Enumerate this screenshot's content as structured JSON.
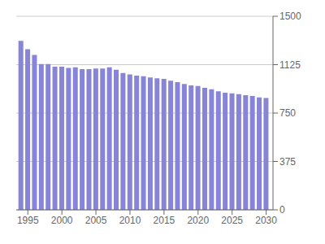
{
  "chart_data": {
    "type": "bar",
    "x": [
      1994,
      1995,
      1996,
      1997,
      1998,
      1999,
      2000,
      2001,
      2002,
      2003,
      2004,
      2005,
      2006,
      2007,
      2008,
      2009,
      2010,
      2011,
      2012,
      2013,
      2014,
      2015,
      2016,
      2017,
      2018,
      2019,
      2020,
      2021,
      2022,
      2023,
      2024,
      2025,
      2026,
      2027,
      2028,
      2029,
      2030
    ],
    "values": [
      1310,
      1245,
      1200,
      1130,
      1130,
      1110,
      1110,
      1100,
      1105,
      1090,
      1090,
      1095,
      1095,
      1105,
      1085,
      1060,
      1050,
      1040,
      1035,
      1025,
      1020,
      1015,
      1000,
      990,
      975,
      965,
      960,
      945,
      935,
      918,
      908,
      903,
      897,
      888,
      882,
      872,
      867
    ],
    "xlim": [
      1993.3,
      2031.0
    ],
    "xticks": [
      1995,
      2000,
      2005,
      2010,
      2015,
      2020,
      2025,
      2030
    ],
    "ylim": [
      0,
      1500
    ],
    "yticks": [
      0,
      375,
      750,
      1125,
      1500
    ],
    "grid": true
  }
}
